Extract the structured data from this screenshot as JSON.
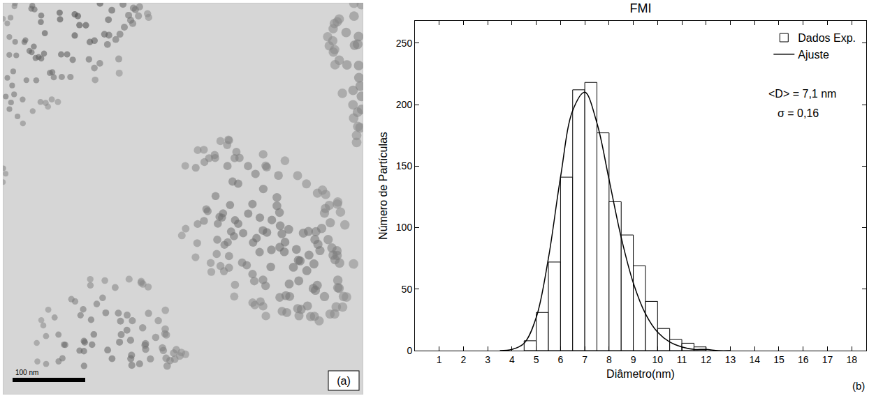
{
  "image_panel": {
    "label": "(a)",
    "scale_bar": "100 nm"
  },
  "chart_data": {
    "type": "histogram",
    "title": "FMI",
    "panel_label": "(b)",
    "x_label": "Diâmetro(nm)",
    "y_label": "Número de Partículas",
    "annotations": [
      "<D> = 7,1 nm",
      "σ = 0,16"
    ],
    "xlim": [
      0,
      18.6
    ],
    "xticks": [
      1,
      2,
      3,
      4,
      5,
      6,
      7,
      8,
      9,
      10,
      11,
      12,
      13,
      14,
      15,
      16,
      17,
      18
    ],
    "ylim": [
      0,
      268
    ],
    "yticks": [
      0,
      50,
      100,
      150,
      200,
      250
    ],
    "grid": false,
    "legend": "upper right",
    "series": [
      {
        "name": "Dados Exp.",
        "type": "histogram",
        "color": "#ffffff",
        "bins": [
          4.5,
          5,
          5.5,
          6,
          6.5,
          7,
          7.5,
          8,
          8.5,
          9,
          9.5,
          10,
          10.5,
          11,
          11.5,
          12
        ],
        "values": [
          8,
          31,
          72,
          141,
          212,
          218,
          177,
          121,
          94,
          69,
          40,
          18,
          9,
          6,
          3
        ]
      },
      {
        "name": "Ajuste",
        "type": "line",
        "color": "#000000",
        "x": [
          3.5,
          4,
          4.5,
          5,
          5.5,
          6,
          6.5,
          7,
          7.5,
          8,
          8.5,
          9,
          9.5,
          10,
          10.5,
          11,
          11.5,
          12,
          12.5,
          13
        ],
        "values": [
          0,
          1,
          6,
          27,
          75,
          141,
          195,
          210,
          185,
          139,
          92,
          55,
          30,
          15,
          7,
          3,
          1,
          1,
          0,
          0
        ]
      }
    ]
  }
}
